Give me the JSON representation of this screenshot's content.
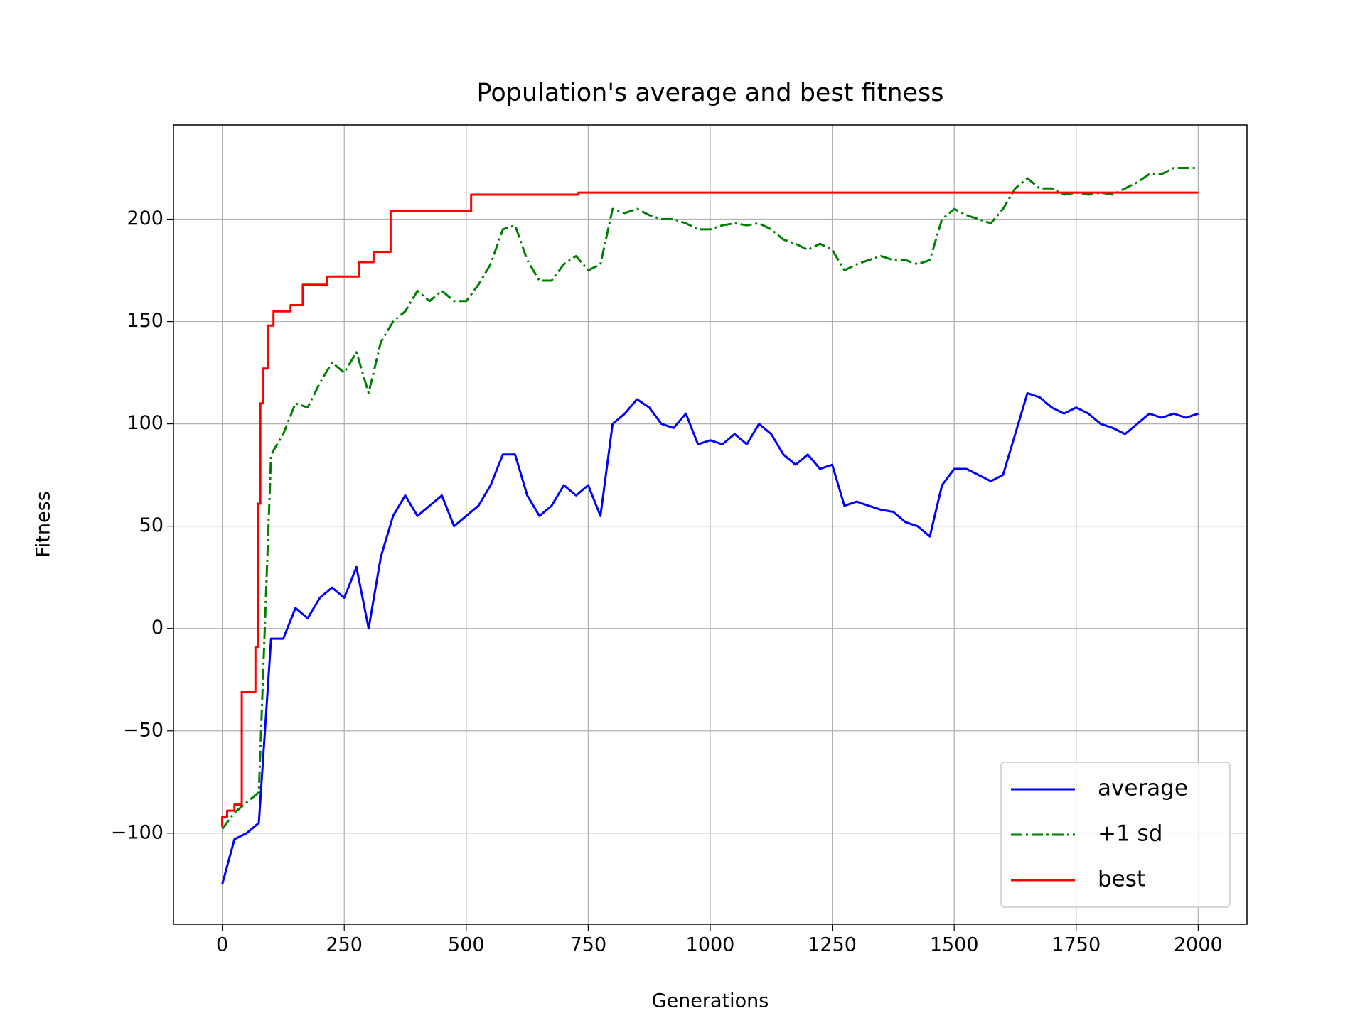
{
  "chart_data": {
    "type": "line",
    "title": "Population's average and best fitness",
    "xlabel": "Generations",
    "ylabel": "Fitness",
    "x": [
      0,
      25,
      50,
      75,
      100,
      125,
      150,
      175,
      200,
      225,
      250,
      275,
      300,
      325,
      350,
      375,
      400,
      425,
      450,
      475,
      500,
      525,
      550,
      575,
      600,
      625,
      650,
      675,
      700,
      725,
      750,
      775,
      800,
      825,
      850,
      875,
      900,
      925,
      950,
      975,
      1000,
      1025,
      1050,
      1075,
      1100,
      1125,
      1150,
      1175,
      1200,
      1225,
      1250,
      1275,
      1300,
      1325,
      1350,
      1375,
      1400,
      1425,
      1450,
      1475,
      1500,
      1525,
      1550,
      1575,
      1600,
      1625,
      1650,
      1675,
      1700,
      1725,
      1750,
      1775,
      1800,
      1825,
      1850,
      1875,
      1900,
      1925,
      1950,
      1975,
      2000
    ],
    "series": [
      {
        "name": "average",
        "color": "#0000ff",
        "dash": "solid",
        "values": [
          -125,
          -103,
          -100,
          -95,
          -5,
          -5,
          10,
          5,
          15,
          20,
          15,
          30,
          0,
          35,
          55,
          65,
          55,
          60,
          65,
          50,
          55,
          60,
          70,
          85,
          85,
          65,
          55,
          60,
          70,
          65,
          70,
          55,
          100,
          105,
          112,
          108,
          100,
          98,
          105,
          90,
          92,
          90,
          95,
          90,
          100,
          95,
          85,
          80,
          85,
          78,
          80,
          60,
          62,
          60,
          58,
          57,
          52,
          50,
          45,
          70,
          78,
          78,
          75,
          72,
          75,
          95,
          115,
          113,
          108,
          105,
          108,
          105,
          100,
          98,
          95,
          100,
          105,
          103,
          105,
          103,
          105
        ]
      },
      {
        "name": "+1 sd",
        "color": "#008000",
        "dash": "dashdot",
        "values": [
          -98,
          -90,
          -85,
          -80,
          85,
          95,
          110,
          108,
          120,
          130,
          125,
          135,
          115,
          140,
          150,
          155,
          165,
          160,
          165,
          160,
          160,
          168,
          178,
          195,
          197,
          180,
          170,
          170,
          178,
          182,
          175,
          178,
          205,
          203,
          205,
          202,
          200,
          200,
          198,
          195,
          195,
          197,
          198,
          197,
          198,
          195,
          190,
          188,
          185,
          188,
          185,
          175,
          178,
          180,
          182,
          180,
          180,
          178,
          180,
          200,
          205,
          202,
          200,
          198,
          205,
          215,
          220,
          215,
          215,
          212,
          213,
          212,
          213,
          212,
          215,
          218,
          222,
          222,
          225,
          225,
          225
        ]
      },
      {
        "name": "best",
        "color": "#ff0000",
        "dash": "solid",
        "x": [
          0,
          0,
          10,
          10,
          25,
          25,
          40,
          40,
          68,
          68,
          73,
          73,
          78,
          78,
          83,
          83,
          93,
          93,
          105,
          105,
          140,
          140,
          165,
          165,
          215,
          215,
          280,
          280,
          310,
          310,
          345,
          345,
          510,
          510,
          730,
          730,
          2000
        ],
        "values": [
          -97,
          -92,
          -92,
          -89,
          -89,
          -86,
          -86,
          -31,
          -31,
          -9,
          -9,
          61,
          61,
          110,
          110,
          127,
          127,
          148,
          148,
          155,
          155,
          158,
          158,
          168,
          168,
          172,
          172,
          179,
          179,
          184,
          184,
          204,
          204,
          212,
          212,
          213,
          213
        ]
      }
    ],
    "xlim": [
      -100,
      2100
    ],
    "ylim": [
      -144.5,
      246
    ],
    "xticks": [
      0,
      250,
      500,
      750,
      1000,
      1250,
      1500,
      1750,
      2000
    ],
    "yticks": [
      {
        "value": -100,
        "label": "−100"
      },
      {
        "value": -50,
        "label": "−50"
      },
      0,
      50,
      100,
      150,
      200
    ],
    "grid": true,
    "legend": "lower right"
  }
}
